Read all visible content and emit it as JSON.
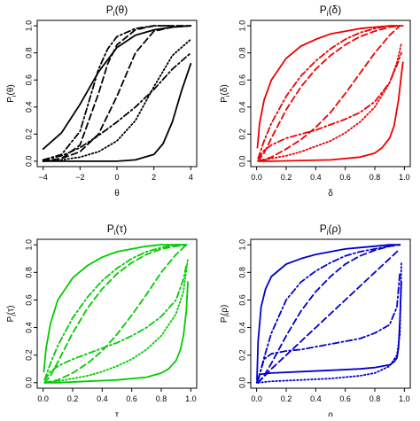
{
  "chart_data": [
    {
      "type": "line",
      "color": "#000000",
      "title_main": "P",
      "title_sub": "i",
      "title_arg": "(θ)",
      "xlabel": "θ",
      "ylabel_main": "P",
      "ylabel_sub": "i",
      "ylabel_arg": "(θ)",
      "xlim": [
        -4,
        4
      ],
      "ylim": [
        0,
        1
      ],
      "xticks": [
        "−4",
        "−2",
        "0",
        "2",
        "4"
      ],
      "xtick_values": [
        -4,
        -2,
        0,
        2,
        4
      ],
      "yticks": [
        "0.0",
        "0.2",
        "0.4",
        "0.6",
        "0.8",
        "1.0"
      ],
      "ytick_values": [
        0,
        0.2,
        0.4,
        0.6,
        0.8,
        1.0
      ],
      "series": [
        {
          "linestyle": "solid",
          "x": [
            -4,
            -3,
            -2,
            -1,
            0,
            1,
            2,
            3,
            4
          ],
          "y": [
            0.09,
            0.21,
            0.42,
            0.66,
            0.84,
            0.93,
            0.97,
            0.99,
            1.0
          ]
        },
        {
          "linestyle": "solid",
          "x": [
            -4,
            -2,
            0,
            1,
            2,
            2.5,
            3,
            3.5,
            4
          ],
          "y": [
            0.0,
            0.0,
            0.0,
            0.01,
            0.05,
            0.13,
            0.29,
            0.52,
            0.72
          ]
        },
        {
          "linestyle": "dashed",
          "x": [
            -4,
            -3,
            -2,
            -1,
            -0.5,
            0,
            1,
            2,
            3,
            4
          ],
          "y": [
            0.0,
            0.02,
            0.12,
            0.5,
            0.72,
            0.86,
            0.97,
            1.0,
            1.0,
            1.0
          ]
        },
        {
          "linestyle": "dashed",
          "x": [
            -4,
            -3,
            -2,
            -1,
            0,
            1,
            2,
            3,
            4
          ],
          "y": [
            0.0,
            0.02,
            0.07,
            0.2,
            0.48,
            0.8,
            0.96,
            0.99,
            1.0
          ]
        },
        {
          "linestyle": "dashdot",
          "x": [
            -4,
            -3,
            -2,
            -1.5,
            -1,
            -0.5,
            0,
            1,
            2,
            3,
            4
          ],
          "y": [
            0.01,
            0.05,
            0.22,
            0.45,
            0.68,
            0.83,
            0.92,
            0.98,
            1.0,
            1.0,
            1.0
          ]
        },
        {
          "linestyle": "dashdot",
          "x": [
            -4,
            -3,
            -2,
            -1,
            0,
            1,
            2,
            3,
            4
          ],
          "y": [
            0.01,
            0.04,
            0.1,
            0.19,
            0.29,
            0.4,
            0.53,
            0.68,
            0.8
          ]
        },
        {
          "linestyle": "dotted",
          "x": [
            -4,
            -3,
            -2,
            -1,
            0,
            1,
            2,
            3,
            4
          ],
          "y": [
            0.0,
            0.01,
            0.03,
            0.07,
            0.15,
            0.3,
            0.55,
            0.78,
            0.9
          ]
        }
      ]
    },
    {
      "type": "line",
      "color": "#ee0000",
      "title_main": "P",
      "title_sub": "i",
      "title_arg": "(δ)",
      "xlabel": "δ",
      "ylabel_main": "P",
      "ylabel_sub": "i",
      "ylabel_arg": "(δ)",
      "xlim": [
        0,
        1
      ],
      "ylim": [
        0,
        1
      ],
      "xticks": [
        "0.0",
        "0.2",
        "0.4",
        "0.6",
        "0.8",
        "1.0"
      ],
      "xtick_values": [
        0,
        0.2,
        0.4,
        0.6,
        0.8,
        1.0
      ],
      "yticks": [
        "0.0",
        "0.2",
        "0.4",
        "0.6",
        "0.8",
        "1.0"
      ],
      "ytick_values": [
        0,
        0.2,
        0.4,
        0.6,
        0.8,
        1.0
      ],
      "series": [
        {
          "linestyle": "solid",
          "x": [
            0.005,
            0.02,
            0.05,
            0.1,
            0.2,
            0.3,
            0.4,
            0.5,
            0.6,
            0.7,
            0.8,
            0.9,
            0.95,
            0.99
          ],
          "y": [
            0.1,
            0.28,
            0.45,
            0.6,
            0.76,
            0.85,
            0.9,
            0.94,
            0.96,
            0.98,
            0.99,
            1.0,
            1.0,
            1.0
          ]
        },
        {
          "linestyle": "solid",
          "x": [
            0.01,
            0.1,
            0.3,
            0.5,
            0.7,
            0.8,
            0.85,
            0.9,
            0.93,
            0.96,
            0.98,
            0.99
          ],
          "y": [
            0.0,
            0.0,
            0.005,
            0.01,
            0.03,
            0.06,
            0.1,
            0.17,
            0.26,
            0.45,
            0.64,
            0.73
          ]
        },
        {
          "linestyle": "dashed",
          "x": [
            0.01,
            0.05,
            0.1,
            0.2,
            0.3,
            0.4,
            0.5,
            0.6,
            0.7,
            0.8,
            0.9,
            0.97
          ],
          "y": [
            0.0,
            0.06,
            0.17,
            0.38,
            0.55,
            0.68,
            0.78,
            0.86,
            0.92,
            0.96,
            0.99,
            1.0
          ]
        },
        {
          "linestyle": "dashed",
          "x": [
            0.01,
            0.1,
            0.2,
            0.3,
            0.4,
            0.5,
            0.6,
            0.7,
            0.8,
            0.9,
            0.97
          ],
          "y": [
            0.0,
            0.03,
            0.09,
            0.16,
            0.25,
            0.36,
            0.5,
            0.65,
            0.8,
            0.93,
            1.0
          ]
        },
        {
          "linestyle": "dashdot",
          "x": [
            0.01,
            0.05,
            0.1,
            0.2,
            0.3,
            0.4,
            0.5,
            0.6,
            0.7,
            0.8,
            0.9,
            0.97
          ],
          "y": [
            0.02,
            0.15,
            0.28,
            0.48,
            0.63,
            0.74,
            0.83,
            0.9,
            0.95,
            0.98,
            1.0,
            1.0
          ]
        },
        {
          "linestyle": "dashdot",
          "x": [
            0.01,
            0.05,
            0.1,
            0.2,
            0.3,
            0.4,
            0.5,
            0.6,
            0.7,
            0.8,
            0.9,
            0.95,
            0.98
          ],
          "y": [
            0.02,
            0.08,
            0.12,
            0.17,
            0.2,
            0.23,
            0.27,
            0.31,
            0.36,
            0.44,
            0.58,
            0.71,
            0.8
          ]
        },
        {
          "linestyle": "dotted",
          "x": [
            0.01,
            0.1,
            0.2,
            0.3,
            0.4,
            0.5,
            0.6,
            0.7,
            0.8,
            0.9,
            0.95,
            0.98
          ],
          "y": [
            0.0,
            0.02,
            0.04,
            0.07,
            0.11,
            0.15,
            0.21,
            0.29,
            0.4,
            0.58,
            0.73,
            0.87
          ]
        }
      ]
    },
    {
      "type": "line",
      "color": "#00cc00",
      "title_main": "P",
      "title_sub": "i",
      "title_arg": "(τ)",
      "xlabel": "τ",
      "ylabel_main": "P",
      "ylabel_sub": "i",
      "ylabel_arg": "(τ)",
      "xlim": [
        0,
        1
      ],
      "ylim": [
        0,
        1
      ],
      "xticks": [
        "0.0",
        "0.2",
        "0.4",
        "0.6",
        "0.8",
        "1.0"
      ],
      "xtick_values": [
        0,
        0.2,
        0.4,
        0.6,
        0.8,
        1.0
      ],
      "yticks": [
        "0.0",
        "0.2",
        "0.4",
        "0.6",
        "0.8",
        "1.0"
      ],
      "ytick_values": [
        0,
        0.2,
        0.4,
        0.6,
        0.8,
        1.0
      ],
      "series": [
        {
          "linestyle": "solid",
          "x": [
            0.005,
            0.02,
            0.05,
            0.1,
            0.2,
            0.3,
            0.4,
            0.5,
            0.6,
            0.7,
            0.8,
            0.9,
            0.97
          ],
          "y": [
            0.08,
            0.25,
            0.43,
            0.6,
            0.76,
            0.85,
            0.91,
            0.95,
            0.97,
            0.99,
            1.0,
            1.0,
            1.0
          ]
        },
        {
          "linestyle": "solid",
          "x": [
            0.01,
            0.1,
            0.3,
            0.5,
            0.7,
            0.8,
            0.85,
            0.9,
            0.93,
            0.95,
            0.97,
            0.98
          ],
          "y": [
            0.0,
            0.0,
            0.01,
            0.02,
            0.04,
            0.07,
            0.1,
            0.16,
            0.24,
            0.34,
            0.52,
            0.73
          ]
        },
        {
          "linestyle": "dashed",
          "x": [
            0.01,
            0.05,
            0.1,
            0.2,
            0.3,
            0.4,
            0.5,
            0.6,
            0.7,
            0.8,
            0.9,
            0.97
          ],
          "y": [
            0.0,
            0.05,
            0.15,
            0.36,
            0.54,
            0.68,
            0.79,
            0.87,
            0.93,
            0.97,
            0.99,
            1.0
          ]
        },
        {
          "linestyle": "dashed",
          "x": [
            0.01,
            0.1,
            0.2,
            0.3,
            0.4,
            0.5,
            0.6,
            0.7,
            0.8,
            0.9,
            0.97
          ],
          "y": [
            0.0,
            0.02,
            0.07,
            0.14,
            0.23,
            0.35,
            0.49,
            0.64,
            0.8,
            0.93,
            1.0
          ]
        },
        {
          "linestyle": "dashdot",
          "x": [
            0.01,
            0.05,
            0.1,
            0.2,
            0.3,
            0.4,
            0.5,
            0.6,
            0.7,
            0.8,
            0.9,
            0.97
          ],
          "y": [
            0.02,
            0.14,
            0.27,
            0.47,
            0.62,
            0.74,
            0.83,
            0.9,
            0.95,
            0.98,
            1.0,
            1.0
          ]
        },
        {
          "linestyle": "dashdot",
          "x": [
            0.01,
            0.05,
            0.1,
            0.2,
            0.3,
            0.4,
            0.5,
            0.6,
            0.7,
            0.8,
            0.9,
            0.95,
            0.97
          ],
          "y": [
            0.02,
            0.08,
            0.12,
            0.17,
            0.21,
            0.25,
            0.29,
            0.34,
            0.4,
            0.48,
            0.6,
            0.75,
            0.85
          ]
        },
        {
          "linestyle": "dotted",
          "x": [
            0.01,
            0.1,
            0.2,
            0.3,
            0.4,
            0.5,
            0.6,
            0.7,
            0.8,
            0.9,
            0.95,
            0.98
          ],
          "y": [
            0.0,
            0.01,
            0.03,
            0.05,
            0.08,
            0.12,
            0.17,
            0.24,
            0.34,
            0.5,
            0.66,
            0.9
          ]
        }
      ]
    },
    {
      "type": "line",
      "color": "#0000cc",
      "title_main": "P",
      "title_sub": "i",
      "title_arg": "(ρ)",
      "xlabel": "ρ",
      "ylabel_main": "P",
      "ylabel_sub": "i",
      "ylabel_arg": "(ρ)",
      "xlim": [
        0,
        1
      ],
      "ylim": [
        0,
        1
      ],
      "xticks": [
        "0.0",
        "0.2",
        "0.4",
        "0.6",
        "0.8",
        "1.0"
      ],
      "xtick_values": [
        0,
        0.2,
        0.4,
        0.6,
        0.8,
        1.0
      ],
      "yticks": [
        "0.0",
        "0.2",
        "0.4",
        "0.6",
        "0.8",
        "1.0"
      ],
      "ytick_values": [
        0,
        0.2,
        0.4,
        0.6,
        0.8,
        1.0
      ],
      "series": [
        {
          "linestyle": "solid",
          "x": [
            0.002,
            0.01,
            0.03,
            0.06,
            0.1,
            0.2,
            0.3,
            0.4,
            0.5,
            0.6,
            0.7,
            0.8,
            0.9,
            0.97
          ],
          "y": [
            0.02,
            0.3,
            0.55,
            0.68,
            0.77,
            0.86,
            0.9,
            0.93,
            0.95,
            0.97,
            0.98,
            0.99,
            1.0,
            1.0
          ]
        },
        {
          "linestyle": "solid",
          "x": [
            0.0,
            0.02,
            0.1,
            0.3,
            0.5,
            0.7,
            0.8,
            0.85,
            0.9,
            0.93,
            0.95,
            0.96,
            0.97,
            0.98
          ],
          "y": [
            0.0,
            0.06,
            0.07,
            0.08,
            0.09,
            0.1,
            0.11,
            0.12,
            0.13,
            0.15,
            0.18,
            0.25,
            0.45,
            0.73
          ]
        },
        {
          "linestyle": "dashed",
          "x": [
            0.01,
            0.05,
            0.1,
            0.2,
            0.3,
            0.4,
            0.5,
            0.6,
            0.7,
            0.8,
            0.9,
            0.97
          ],
          "y": [
            0.0,
            0.05,
            0.14,
            0.34,
            0.52,
            0.66,
            0.77,
            0.86,
            0.92,
            0.96,
            0.99,
            1.0
          ]
        },
        {
          "linestyle": "dashed",
          "x": [
            0.01,
            0.1,
            0.2,
            0.3,
            0.4,
            0.5,
            0.6,
            0.7,
            0.8,
            0.9,
            0.97
          ],
          "y": [
            0.0,
            0.1,
            0.2,
            0.3,
            0.4,
            0.5,
            0.6,
            0.7,
            0.8,
            0.9,
            0.97
          ]
        },
        {
          "linestyle": "dashdot",
          "x": [
            0.01,
            0.05,
            0.1,
            0.2,
            0.3,
            0.4,
            0.5,
            0.6,
            0.7,
            0.8,
            0.9,
            0.97
          ],
          "y": [
            0.02,
            0.18,
            0.36,
            0.6,
            0.73,
            0.81,
            0.87,
            0.92,
            0.95,
            0.97,
            0.99,
            1.0
          ]
        },
        {
          "linestyle": "dashdot",
          "x": [
            0.01,
            0.05,
            0.1,
            0.2,
            0.3,
            0.4,
            0.5,
            0.6,
            0.7,
            0.8,
            0.9,
            0.95,
            0.97
          ],
          "y": [
            0.02,
            0.17,
            0.21,
            0.23,
            0.24,
            0.26,
            0.28,
            0.3,
            0.32,
            0.36,
            0.42,
            0.55,
            0.8
          ]
        },
        {
          "linestyle": "dotted",
          "x": [
            0.01,
            0.1,
            0.3,
            0.5,
            0.7,
            0.8,
            0.9,
            0.95,
            0.97,
            0.98
          ],
          "y": [
            0.0,
            0.01,
            0.02,
            0.03,
            0.05,
            0.07,
            0.12,
            0.2,
            0.35,
            0.88
          ]
        }
      ]
    }
  ]
}
